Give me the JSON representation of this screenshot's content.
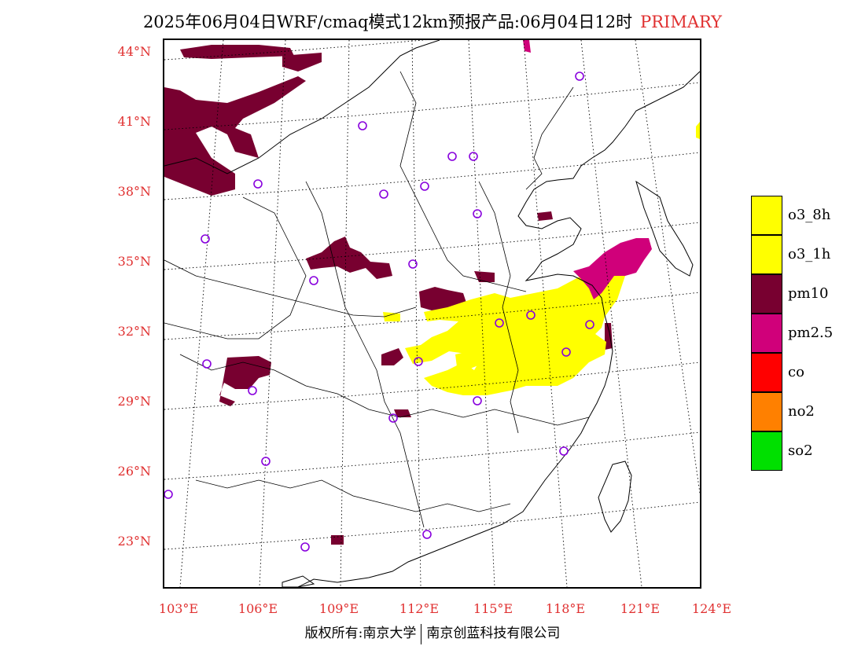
{
  "title": {
    "text": "2025年06月04日WRF/cmaq模式12km预报产品:06月04日12时",
    "tag": "PRIMARY"
  },
  "colors": {
    "o3_8h": "#ffff00",
    "o3_1h": "#ffff00",
    "pm10": "#780030",
    "pm2_5": "#d0007a",
    "co": "#ff0000",
    "no2": "#ff8000",
    "so2": "#00e000",
    "station": "#8800dd",
    "label": "#e03030"
  },
  "legend": [
    {
      "label": "o3_8h",
      "color": "#ffff00"
    },
    {
      "label": "o3_1h",
      "color": "#ffff00"
    },
    {
      "label": "pm10",
      "color": "#780030"
    },
    {
      "label": "pm2.5",
      "color": "#d0007a"
    },
    {
      "label": "co",
      "color": "#ff0000"
    },
    {
      "label": "no2",
      "color": "#ff8000"
    },
    {
      "label": "so2",
      "color": "#00e000"
    }
  ],
  "latitude_labels": [
    "44°N",
    "41°N",
    "38°N",
    "35°N",
    "32°N",
    "29°N",
    "26°N",
    "23°N"
  ],
  "longitude_labels": [
    "103°E",
    "106°E",
    "109°E",
    "112°E",
    "115°E",
    "118°E",
    "121°E",
    "124°E"
  ],
  "copyright": {
    "left": "版权所有:南京大学",
    "right": "南京创蓝科技有限公司"
  },
  "map_extent": {
    "lon_min": 102.8,
    "lon_max": 124.0,
    "lat_min": 21.0,
    "lat_max": 44.5
  }
}
